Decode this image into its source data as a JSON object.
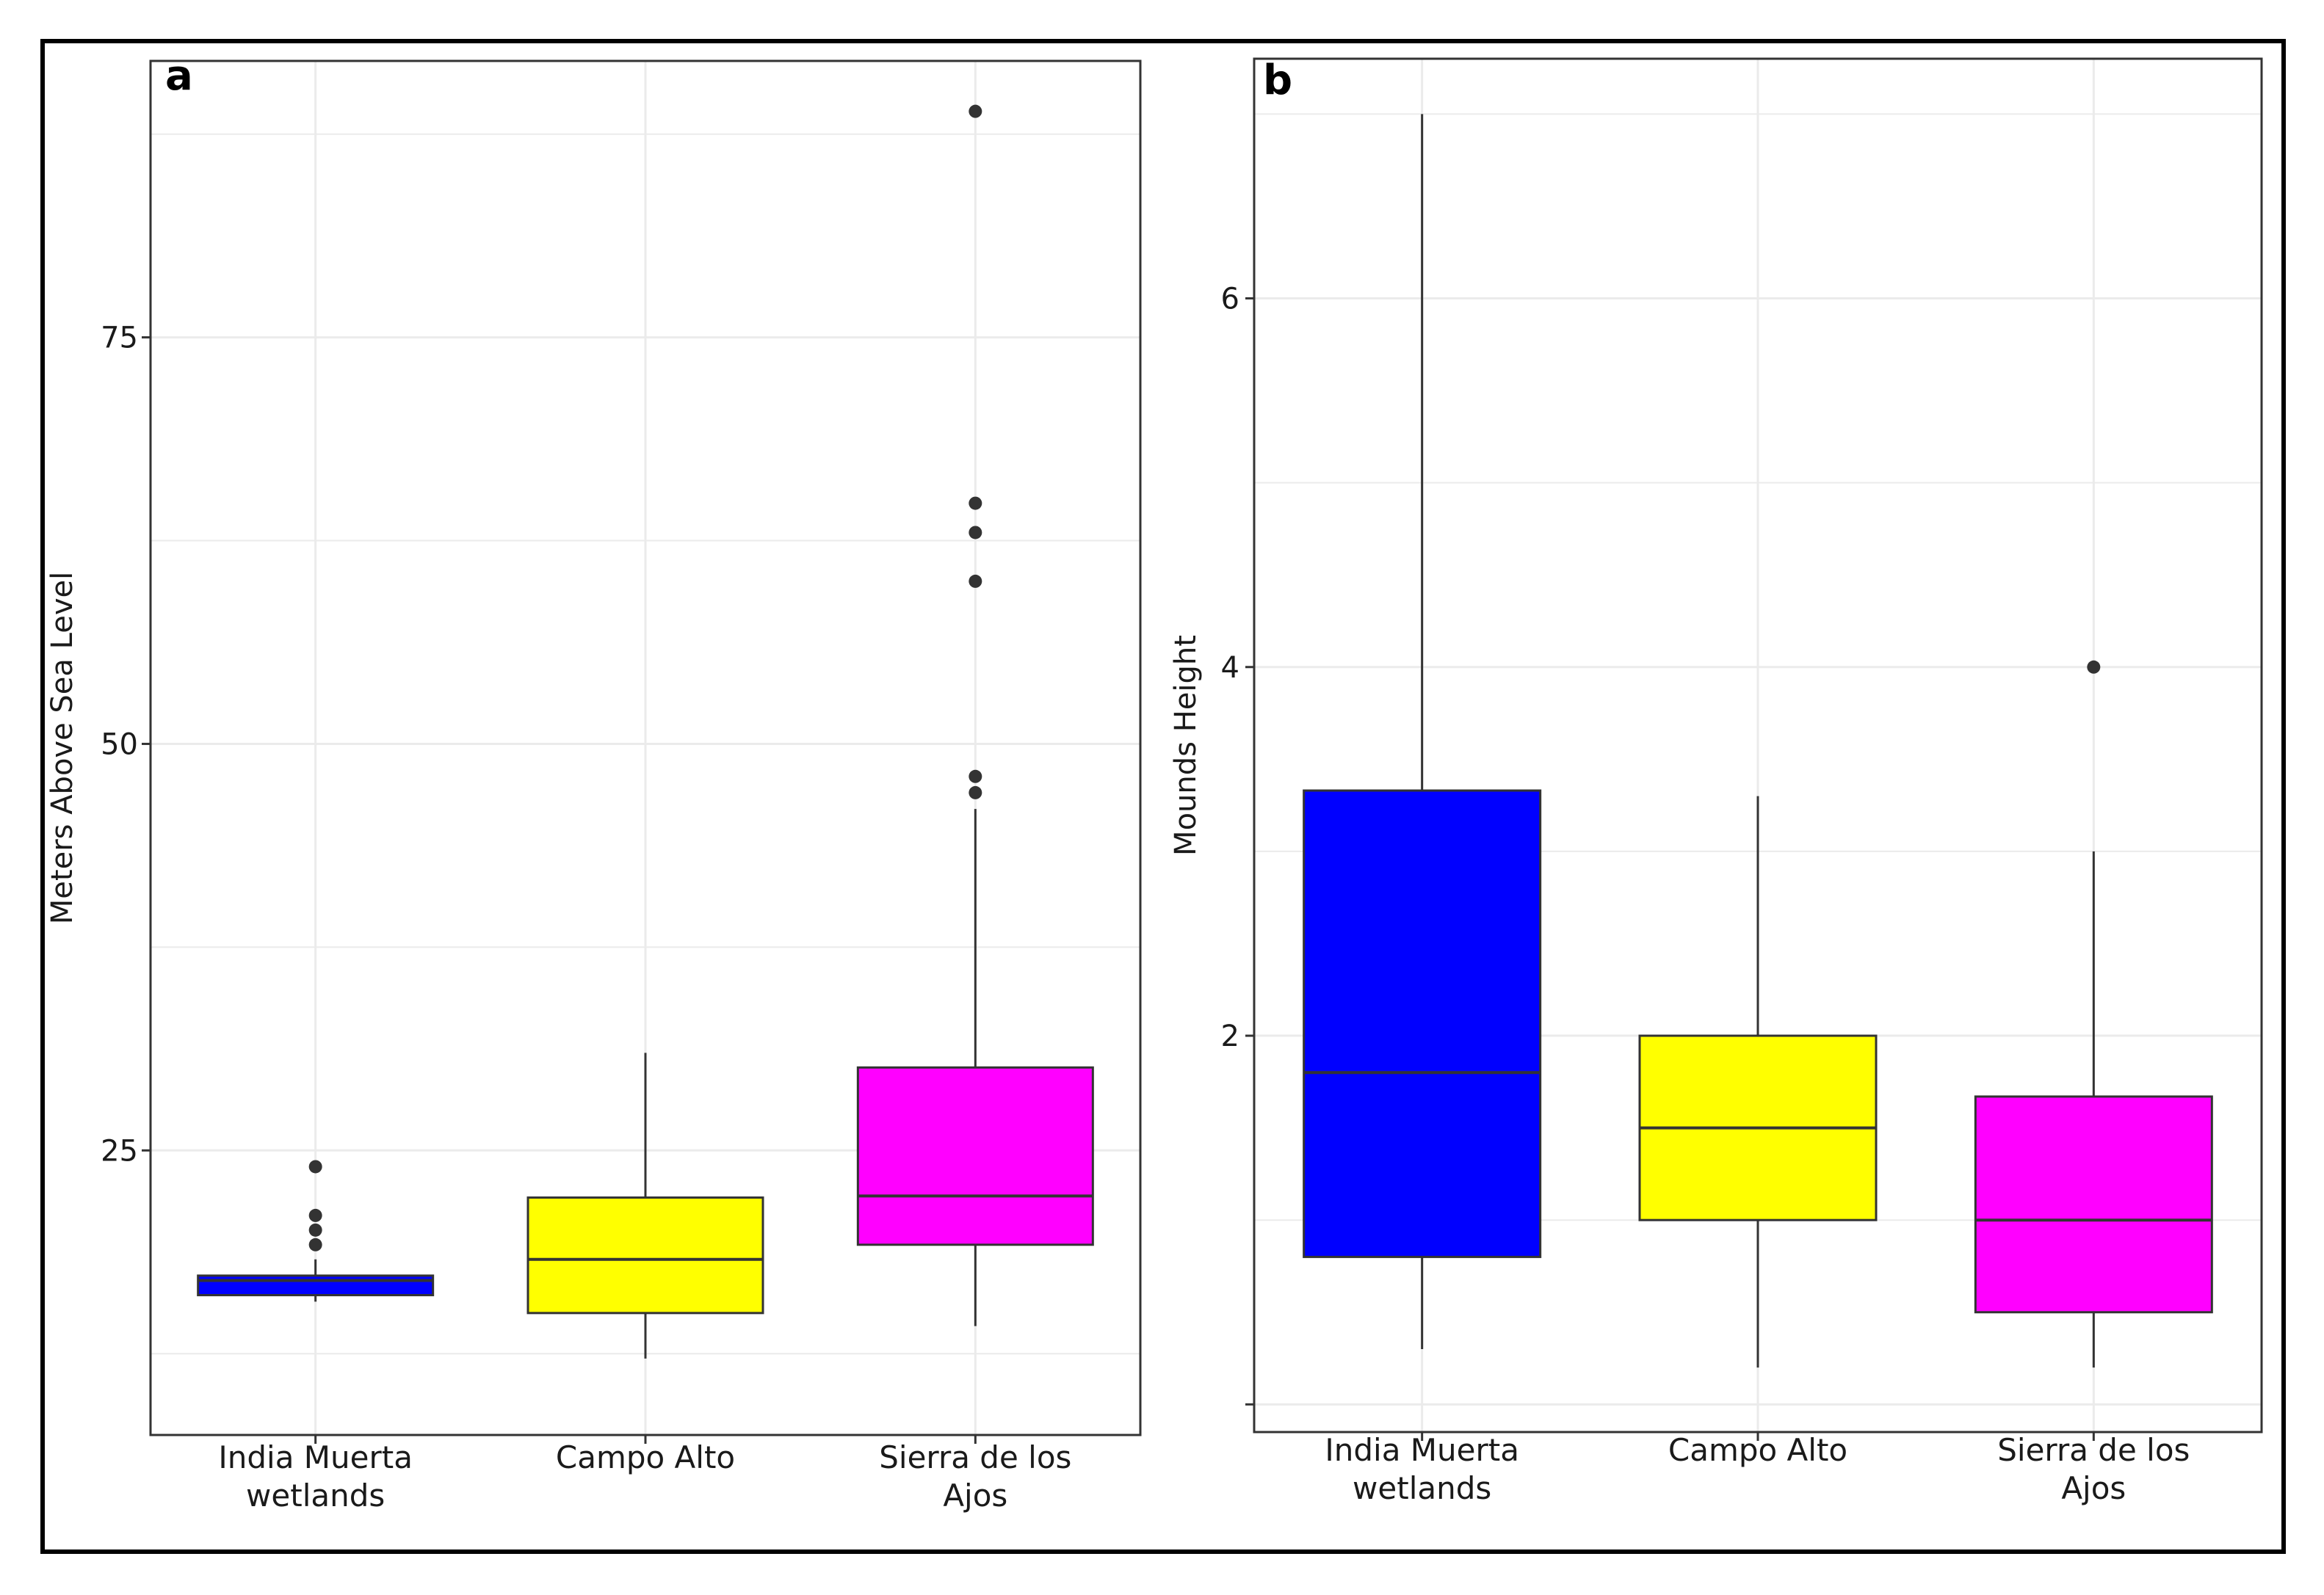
{
  "chart_data": [
    {
      "type": "boxplot",
      "panel_label": "a",
      "title": "",
      "xlabel": "",
      "ylabel": "Meters Above Sea Level",
      "categories": [
        "India Muerta wetlands",
        "Campo Alto",
        "Sierra de los Ajos"
      ],
      "category_lines": [
        [
          "India Muerta",
          "wetlands"
        ],
        [
          "Campo Alto"
        ],
        [
          "Sierra de los",
          "Ajos"
        ]
      ],
      "ylim": [
        7.5,
        92
      ],
      "yticks": [
        25,
        50,
        75
      ],
      "ytick_labels": [
        "25",
        "50",
        "75"
      ],
      "minor_gridlines": [
        12.5,
        37.5,
        62.5,
        87.5
      ],
      "boxes": [
        {
          "category": "India Muerta wetlands",
          "color": "#0000ff",
          "whisker_low": 15.7,
          "q1": 16.1,
          "median": 17.0,
          "q3": 17.3,
          "whisker_high": 18.3,
          "outliers": [
            19.2,
            20.1,
            21.0,
            24.0
          ]
        },
        {
          "category": "Campo Alto",
          "color": "#ffff00",
          "whisker_low": 12.2,
          "q1": 15.0,
          "median": 18.3,
          "q3": 22.1,
          "whisker_high": 31.0,
          "outliers": []
        },
        {
          "category": "Sierra de los Ajos",
          "color": "#ff00ff",
          "whisker_low": 14.2,
          "q1": 19.2,
          "median": 22.2,
          "q3": 30.1,
          "whisker_high": 46.0,
          "outliers": [
            47.0,
            48.0,
            60.0,
            63.0,
            64.8,
            88.9
          ]
        }
      ]
    },
    {
      "type": "boxplot",
      "panel_label": "b",
      "title": "",
      "xlabel": "",
      "ylabel": "Mounds Height",
      "categories": [
        "India Muerta wetlands",
        "Campo Alto",
        "Sierra de los Ajos"
      ],
      "category_lines": [
        [
          "India Muerta",
          "wetlands"
        ],
        [
          "Campo Alto"
        ],
        [
          "Sierra de los",
          "Ajos"
        ]
      ],
      "ylim": [
        -0.15,
        7.3
      ],
      "yticks": [
        0,
        2,
        4,
        6
      ],
      "ytick_labels": [
        "",
        "2",
        "4",
        "6"
      ],
      "minor_gridlines": [
        1,
        3,
        5,
        7
      ],
      "boxes": [
        {
          "category": "India Muerta wetlands",
          "color": "#0000ff",
          "whisker_low": 0.3,
          "q1": 0.8,
          "median": 1.8,
          "q3": 3.33,
          "whisker_high": 7.0,
          "outliers": []
        },
        {
          "category": "Campo Alto",
          "color": "#ffff00",
          "whisker_low": 0.2,
          "q1": 1.0,
          "median": 1.5,
          "q3": 2.0,
          "whisker_high": 3.3,
          "outliers": []
        },
        {
          "category": "Sierra de los Ajos",
          "color": "#ff00ff",
          "whisker_low": 0.2,
          "q1": 0.5,
          "median": 1.0,
          "q3": 1.67,
          "whisker_high": 3.0,
          "outliers": [
            4.0
          ]
        }
      ]
    }
  ],
  "colors": {
    "frame": "#000000",
    "panel_border": "#333333",
    "grid": "#ebebeb",
    "box_outline": "#333333",
    "whisker": "#333333",
    "outlier": "#333333"
  }
}
